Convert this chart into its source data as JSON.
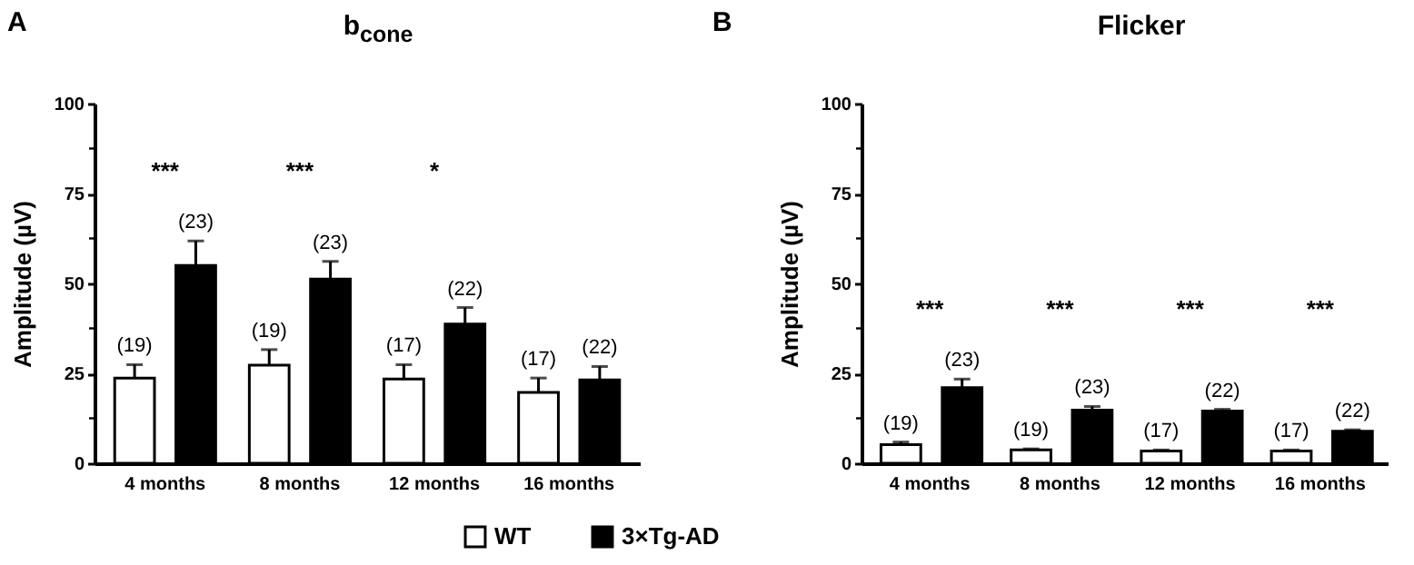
{
  "chart_data": [
    {
      "type": "bar",
      "title": "b$_{cone}$",
      "ylabel": "Amplitude (µV)",
      "categories": [
        "4 months",
        "8 months",
        "12 months",
        "16 months"
      ],
      "series": [
        {
          "name": "WT",
          "color": "#ffffff",
          "values": [
            23.7,
            27.3,
            23.4,
            19.7
          ],
          "errors": [
            3.7,
            4.3,
            4.0,
            4.0
          ]
        },
        {
          "name": "3×Tg-AD",
          "color": "#000000",
          "values": [
            55.0,
            51.2,
            38.7,
            23.2
          ],
          "errors": [
            6.8,
            4.9,
            4.6,
            3.7
          ]
        }
      ],
      "ylim": [
        0,
        100
      ],
      "yticks": [
        0,
        {
          "value": 12.5,
          "label": null
        },
        25,
        {
          "value": 37.5,
          "label": null
        },
        50,
        {
          "value": 62.5,
          "label": null
        },
        75,
        {
          "value": 87.5,
          "label": null
        },
        100
      ],
      "annotations": [
        "A",
        "***",
        "***",
        "*",
        "(19)",
        "(19)",
        "(17)",
        "(17)",
        "(23)",
        "(23)",
        "(22)",
        "(22)"
      ],
      "legend": "bottom",
      "grid": false
    },
    {
      "type": "bar",
      "title": "Flicker",
      "ylabel": "Amplitude (µV)",
      "categories": [
        "4 months",
        "8 months",
        "12 months",
        "16 months"
      ],
      "series": [
        {
          "name": "WT",
          "color": "#ffffff",
          "values": [
            5.2,
            3.7,
            3.4,
            3.4
          ],
          "errors": [
            0.7,
            0.3,
            0.3,
            0.3
          ]
        },
        {
          "name": "3×Tg-AD",
          "color": "#000000",
          "values": [
            21.0,
            14.8,
            14.5,
            8.9
          ],
          "errors": [
            2.4,
            1.0,
            0.5,
            0.4
          ]
        }
      ],
      "ylim": [
        0,
        100
      ],
      "yticks": [
        0,
        {
          "value": 12.5,
          "label": null
        },
        25,
        {
          "value": 37.5,
          "label": null
        },
        50,
        {
          "value": 62.5,
          "label": null
        },
        75,
        {
          "value": 87.5,
          "label": null
        },
        100
      ],
      "annotations": [
        "B",
        "***",
        "***",
        "***",
        "***",
        "(19)",
        "(19)",
        "(17)",
        "(17)",
        "(23)",
        "(23)",
        "(22)",
        "(22)"
      ],
      "legend": "bottom",
      "grid": false
    }
  ]
}
